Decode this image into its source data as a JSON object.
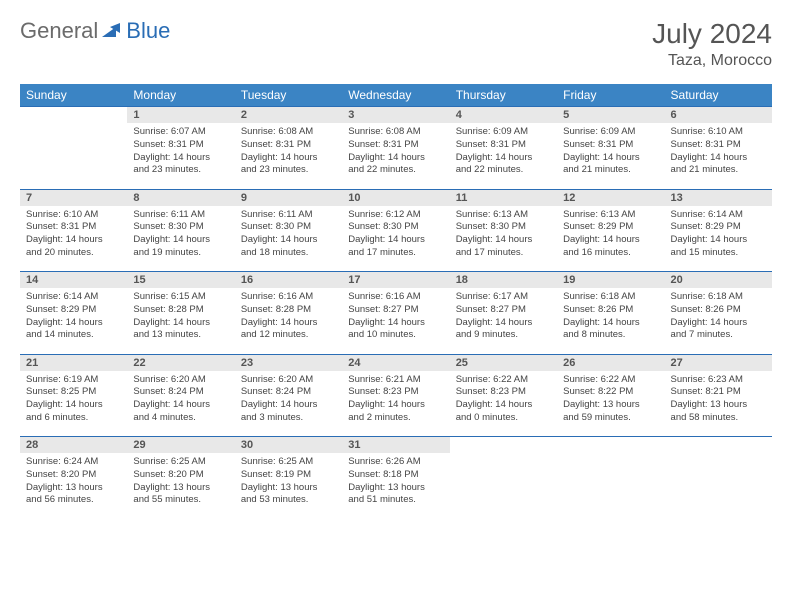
{
  "logo": {
    "general": "General",
    "blue": "Blue"
  },
  "header": {
    "title": "July 2024",
    "location": "Taza, Morocco"
  },
  "colors": {
    "header_bg": "#3b84c4",
    "header_text": "#ffffff",
    "daynum_bg": "#e8e8e8",
    "border": "#2a6db5",
    "logo_gray": "#6b6b6b",
    "logo_blue": "#2a6db5"
  },
  "weekdays": [
    "Sunday",
    "Monday",
    "Tuesday",
    "Wednesday",
    "Thursday",
    "Friday",
    "Saturday"
  ],
  "weeks": [
    {
      "nums": [
        "",
        "1",
        "2",
        "3",
        "4",
        "5",
        "6"
      ],
      "cells": [
        null,
        {
          "sr": "Sunrise: 6:07 AM",
          "ss": "Sunset: 8:31 PM",
          "d1": "Daylight: 14 hours",
          "d2": "and 23 minutes."
        },
        {
          "sr": "Sunrise: 6:08 AM",
          "ss": "Sunset: 8:31 PM",
          "d1": "Daylight: 14 hours",
          "d2": "and 23 minutes."
        },
        {
          "sr": "Sunrise: 6:08 AM",
          "ss": "Sunset: 8:31 PM",
          "d1": "Daylight: 14 hours",
          "d2": "and 22 minutes."
        },
        {
          "sr": "Sunrise: 6:09 AM",
          "ss": "Sunset: 8:31 PM",
          "d1": "Daylight: 14 hours",
          "d2": "and 22 minutes."
        },
        {
          "sr": "Sunrise: 6:09 AM",
          "ss": "Sunset: 8:31 PM",
          "d1": "Daylight: 14 hours",
          "d2": "and 21 minutes."
        },
        {
          "sr": "Sunrise: 6:10 AM",
          "ss": "Sunset: 8:31 PM",
          "d1": "Daylight: 14 hours",
          "d2": "and 21 minutes."
        }
      ]
    },
    {
      "nums": [
        "7",
        "8",
        "9",
        "10",
        "11",
        "12",
        "13"
      ],
      "cells": [
        {
          "sr": "Sunrise: 6:10 AM",
          "ss": "Sunset: 8:31 PM",
          "d1": "Daylight: 14 hours",
          "d2": "and 20 minutes."
        },
        {
          "sr": "Sunrise: 6:11 AM",
          "ss": "Sunset: 8:30 PM",
          "d1": "Daylight: 14 hours",
          "d2": "and 19 minutes."
        },
        {
          "sr": "Sunrise: 6:11 AM",
          "ss": "Sunset: 8:30 PM",
          "d1": "Daylight: 14 hours",
          "d2": "and 18 minutes."
        },
        {
          "sr": "Sunrise: 6:12 AM",
          "ss": "Sunset: 8:30 PM",
          "d1": "Daylight: 14 hours",
          "d2": "and 17 minutes."
        },
        {
          "sr": "Sunrise: 6:13 AM",
          "ss": "Sunset: 8:30 PM",
          "d1": "Daylight: 14 hours",
          "d2": "and 17 minutes."
        },
        {
          "sr": "Sunrise: 6:13 AM",
          "ss": "Sunset: 8:29 PM",
          "d1": "Daylight: 14 hours",
          "d2": "and 16 minutes."
        },
        {
          "sr": "Sunrise: 6:14 AM",
          "ss": "Sunset: 8:29 PM",
          "d1": "Daylight: 14 hours",
          "d2": "and 15 minutes."
        }
      ]
    },
    {
      "nums": [
        "14",
        "15",
        "16",
        "17",
        "18",
        "19",
        "20"
      ],
      "cells": [
        {
          "sr": "Sunrise: 6:14 AM",
          "ss": "Sunset: 8:29 PM",
          "d1": "Daylight: 14 hours",
          "d2": "and 14 minutes."
        },
        {
          "sr": "Sunrise: 6:15 AM",
          "ss": "Sunset: 8:28 PM",
          "d1": "Daylight: 14 hours",
          "d2": "and 13 minutes."
        },
        {
          "sr": "Sunrise: 6:16 AM",
          "ss": "Sunset: 8:28 PM",
          "d1": "Daylight: 14 hours",
          "d2": "and 12 minutes."
        },
        {
          "sr": "Sunrise: 6:16 AM",
          "ss": "Sunset: 8:27 PM",
          "d1": "Daylight: 14 hours",
          "d2": "and 10 minutes."
        },
        {
          "sr": "Sunrise: 6:17 AM",
          "ss": "Sunset: 8:27 PM",
          "d1": "Daylight: 14 hours",
          "d2": "and 9 minutes."
        },
        {
          "sr": "Sunrise: 6:18 AM",
          "ss": "Sunset: 8:26 PM",
          "d1": "Daylight: 14 hours",
          "d2": "and 8 minutes."
        },
        {
          "sr": "Sunrise: 6:18 AM",
          "ss": "Sunset: 8:26 PM",
          "d1": "Daylight: 14 hours",
          "d2": "and 7 minutes."
        }
      ]
    },
    {
      "nums": [
        "21",
        "22",
        "23",
        "24",
        "25",
        "26",
        "27"
      ],
      "cells": [
        {
          "sr": "Sunrise: 6:19 AM",
          "ss": "Sunset: 8:25 PM",
          "d1": "Daylight: 14 hours",
          "d2": "and 6 minutes."
        },
        {
          "sr": "Sunrise: 6:20 AM",
          "ss": "Sunset: 8:24 PM",
          "d1": "Daylight: 14 hours",
          "d2": "and 4 minutes."
        },
        {
          "sr": "Sunrise: 6:20 AM",
          "ss": "Sunset: 8:24 PM",
          "d1": "Daylight: 14 hours",
          "d2": "and 3 minutes."
        },
        {
          "sr": "Sunrise: 6:21 AM",
          "ss": "Sunset: 8:23 PM",
          "d1": "Daylight: 14 hours",
          "d2": "and 2 minutes."
        },
        {
          "sr": "Sunrise: 6:22 AM",
          "ss": "Sunset: 8:23 PM",
          "d1": "Daylight: 14 hours",
          "d2": "and 0 minutes."
        },
        {
          "sr": "Sunrise: 6:22 AM",
          "ss": "Sunset: 8:22 PM",
          "d1": "Daylight: 13 hours",
          "d2": "and 59 minutes."
        },
        {
          "sr": "Sunrise: 6:23 AM",
          "ss": "Sunset: 8:21 PM",
          "d1": "Daylight: 13 hours",
          "d2": "and 58 minutes."
        }
      ]
    },
    {
      "nums": [
        "28",
        "29",
        "30",
        "31",
        "",
        "",
        ""
      ],
      "cells": [
        {
          "sr": "Sunrise: 6:24 AM",
          "ss": "Sunset: 8:20 PM",
          "d1": "Daylight: 13 hours",
          "d2": "and 56 minutes."
        },
        {
          "sr": "Sunrise: 6:25 AM",
          "ss": "Sunset: 8:20 PM",
          "d1": "Daylight: 13 hours",
          "d2": "and 55 minutes."
        },
        {
          "sr": "Sunrise: 6:25 AM",
          "ss": "Sunset: 8:19 PM",
          "d1": "Daylight: 13 hours",
          "d2": "and 53 minutes."
        },
        {
          "sr": "Sunrise: 6:26 AM",
          "ss": "Sunset: 8:18 PM",
          "d1": "Daylight: 13 hours",
          "d2": "and 51 minutes."
        },
        null,
        null,
        null
      ]
    }
  ]
}
